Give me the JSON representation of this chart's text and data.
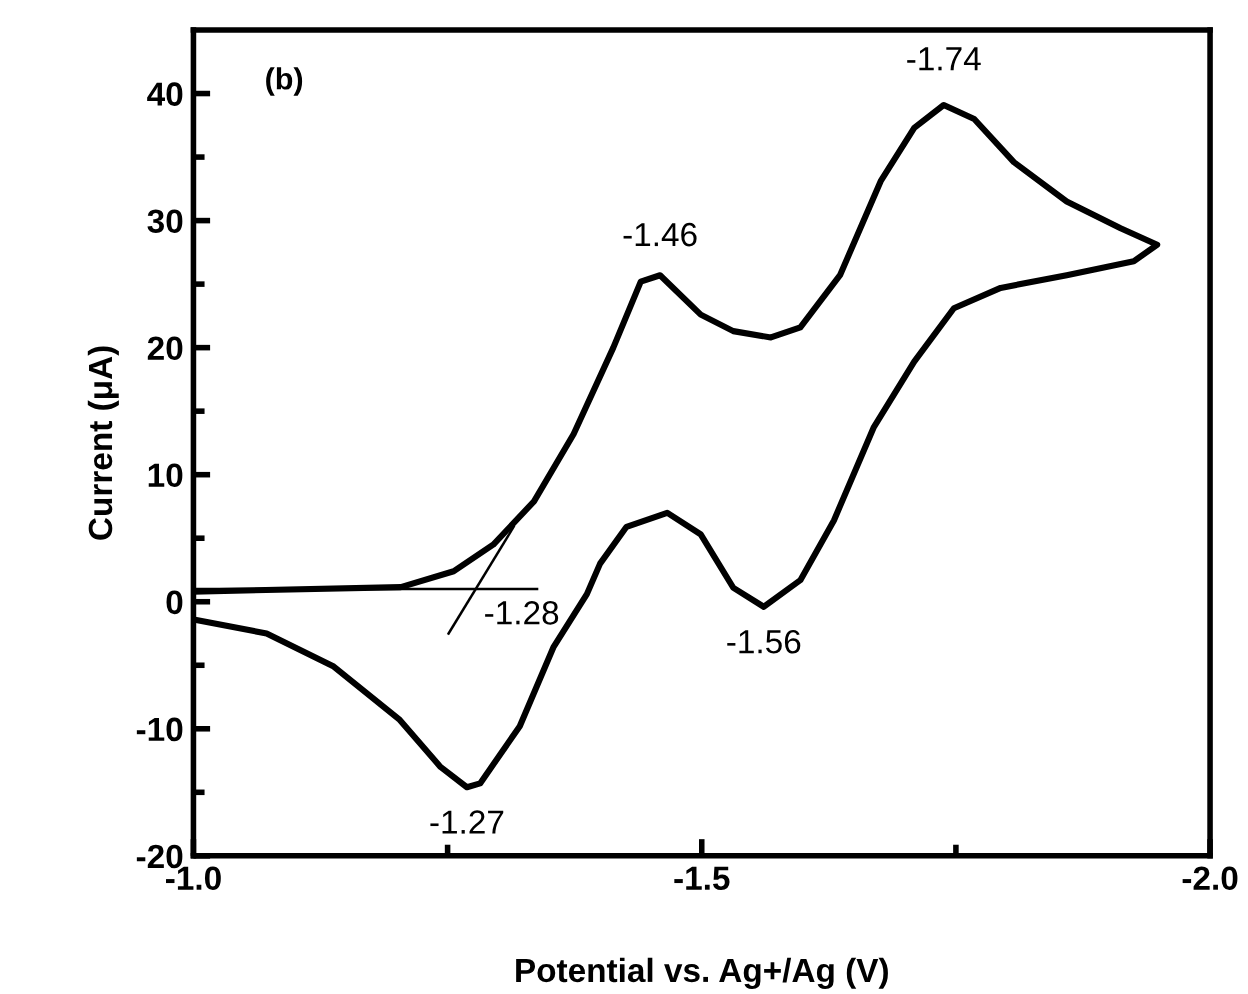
{
  "chart_data": {
    "type": "line",
    "xlabel": "Potential vs. Ag+/Ag (V)",
    "ylabel": "Current (μA)",
    "xlim": [
      -1.0,
      -2.0
    ],
    "ylim": [
      -20,
      45
    ],
    "xticks": [
      {
        "value": -1.0,
        "label": "-1.0"
      },
      {
        "value": -1.25,
        "label": null
      },
      {
        "value": -1.5,
        "label": "-1.5"
      },
      {
        "value": -1.75,
        "label": null
      },
      {
        "value": -2.0,
        "label": "-2.0"
      }
    ],
    "yticks": [
      -20,
      {
        "value": -15,
        "label": null
      },
      -10,
      {
        "value": -5,
        "label": null
      },
      0,
      {
        "value": 5,
        "label": null
      },
      10,
      {
        "value": 15,
        "label": null
      },
      20,
      {
        "value": 25,
        "label": null
      },
      30,
      {
        "value": 35,
        "label": null
      },
      40
    ],
    "grid": false,
    "legend": false,
    "marker": "none",
    "line_style": "solid",
    "series": [
      {
        "color": "#000000",
        "x": [
          -1.0,
          -1.204,
          -1.256,
          -1.295,
          -1.335,
          -1.374,
          -1.413,
          -1.44,
          -1.459,
          -1.499,
          -1.531,
          -1.568,
          -1.597,
          -1.636,
          -1.676,
          -1.709,
          -1.738,
          -1.768,
          -1.807,
          -1.859,
          -1.912,
          -1.948,
          -1.925,
          -1.859,
          -1.794,
          -1.748,
          -1.709,
          -1.669,
          -1.63,
          -1.597,
          -1.561,
          -1.531,
          -1.499,
          -1.466,
          -1.426,
          -1.4,
          -1.387,
          -1.354,
          -1.321,
          -1.282,
          -1.269,
          -1.243,
          -1.203,
          -1.138,
          -1.072,
          -1.0
        ],
        "values": [
          0.8,
          1.15,
          2.4,
          4.5,
          7.9,
          13.2,
          20.0,
          25.2,
          25.7,
          22.6,
          21.3,
          20.8,
          21.6,
          25.7,
          33.1,
          37.3,
          39.1,
          38.0,
          34.6,
          31.5,
          29.4,
          28.1,
          26.8,
          25.7,
          24.7,
          23.1,
          18.9,
          13.7,
          6.4,
          1.7,
          -0.4,
          1.1,
          5.3,
          7.0,
          5.9,
          3.0,
          0.6,
          -3.6,
          -9.8,
          -14.3,
          -14.6,
          -13.0,
          -9.3,
          -5.1,
          -2.5,
          -1.4
        ]
      },
      {
        "color": "#000000",
        "x": [
          -1.0,
          -1.338
        ],
        "values": [
          1.0,
          1.0
        ]
      },
      {
        "color": "#000000",
        "x": [
          -1.251,
          -1.315
        ],
        "values": [
          -2.5,
          5.9
        ]
      }
    ],
    "annotations": [
      "(b)",
      {
        "text": "-1.74",
        "x": -1.738,
        "y": 39.1
      },
      {
        "text": "-1.46",
        "x": -1.459,
        "y": 25.7
      },
      {
        "text": "-1.56",
        "x": -1.561,
        "y": -0.4
      },
      {
        "text": "-1.28",
        "x": -1.28,
        "y": 1.0
      },
      {
        "text": "-1.27",
        "x": -1.269,
        "y": -14.6
      }
    ]
  }
}
